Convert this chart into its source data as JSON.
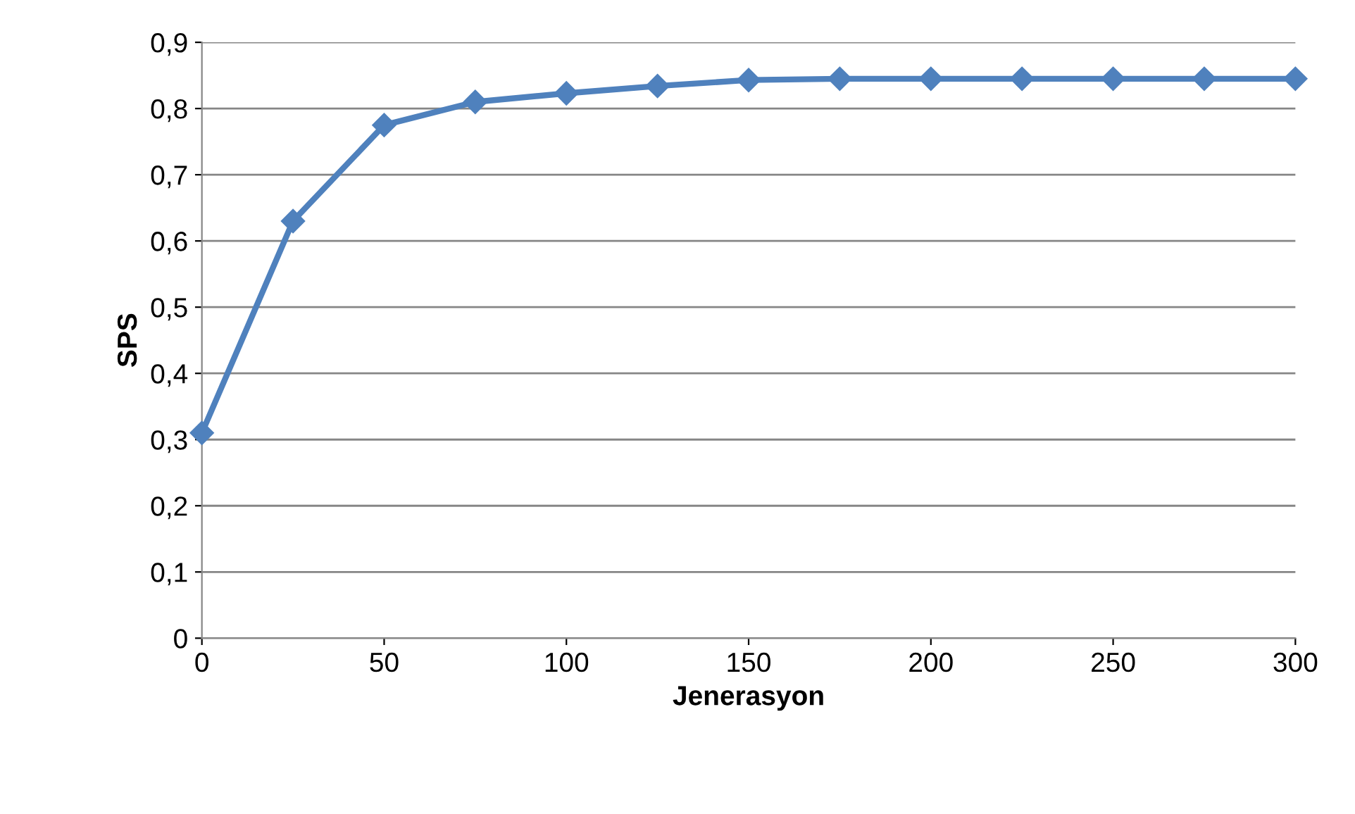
{
  "chart_data": {
    "type": "line",
    "xlabel": "Jenerasyon",
    "ylabel": "SPS",
    "x": [
      0,
      25,
      50,
      75,
      100,
      125,
      150,
      175,
      200,
      225,
      250,
      275,
      300
    ],
    "series": [
      {
        "color": "#4f81bd",
        "values": [
          0.31,
          0.63,
          0.775,
          0.81,
          0.823,
          0.834,
          0.843,
          0.845,
          0.845,
          0.845,
          0.845,
          0.845,
          0.845
        ]
      }
    ],
    "xlim": [
      0,
      300
    ],
    "xticks": [
      0,
      50,
      100,
      150,
      200,
      250,
      300
    ],
    "ylim": [
      0,
      0.9
    ],
    "yticks": [
      0,
      {
        "value": 0.1,
        "label": "0,1"
      },
      {
        "value": 0.2,
        "label": "0,2"
      },
      {
        "value": 0.3,
        "label": "0,3"
      },
      {
        "value": 0.4,
        "label": "0,4"
      },
      {
        "value": 0.5,
        "label": "0,5"
      },
      {
        "value": 0.6,
        "label": "0,6"
      },
      {
        "value": 0.7,
        "label": "0,7"
      },
      {
        "value": 0.8,
        "label": "0,8"
      },
      {
        "value": 0.9,
        "label": "0,9"
      }
    ],
    "grid": "y",
    "marker": "diamond",
    "line_style": "solid"
  }
}
